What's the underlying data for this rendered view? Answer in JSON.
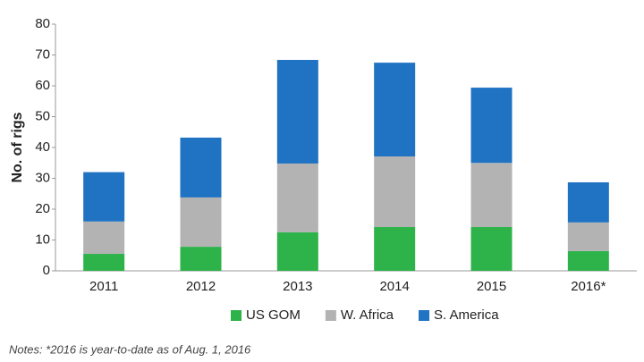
{
  "chart_data": {
    "type": "stacked_bar",
    "y_label": "No. of rigs",
    "categories": [
      "2011",
      "2012",
      "2013",
      "2014",
      "2015",
      "2016*"
    ],
    "series": [
      {
        "name": "US GOM",
        "color": "#2db34a",
        "values": [
          5.5,
          7.8,
          12.5,
          14.2,
          14.2,
          6.4
        ]
      },
      {
        "name": "W. Africa",
        "color": "#b3b3b3",
        "values": [
          10.5,
          16,
          22.3,
          22.9,
          20.8,
          9.3
        ]
      },
      {
        "name": "S. America",
        "color": "#1f73c2",
        "values": [
          16,
          19.4,
          33.6,
          30.4,
          24.4,
          13
        ]
      }
    ],
    "ylim": [
      0,
      80
    ],
    "yticks": [
      0,
      10,
      20,
      30,
      40,
      50,
      60,
      70,
      80
    ],
    "grid": false,
    "legend": "bottom",
    "note": "Notes: *2016 is year-to-date as of Aug. 1, 2016"
  }
}
